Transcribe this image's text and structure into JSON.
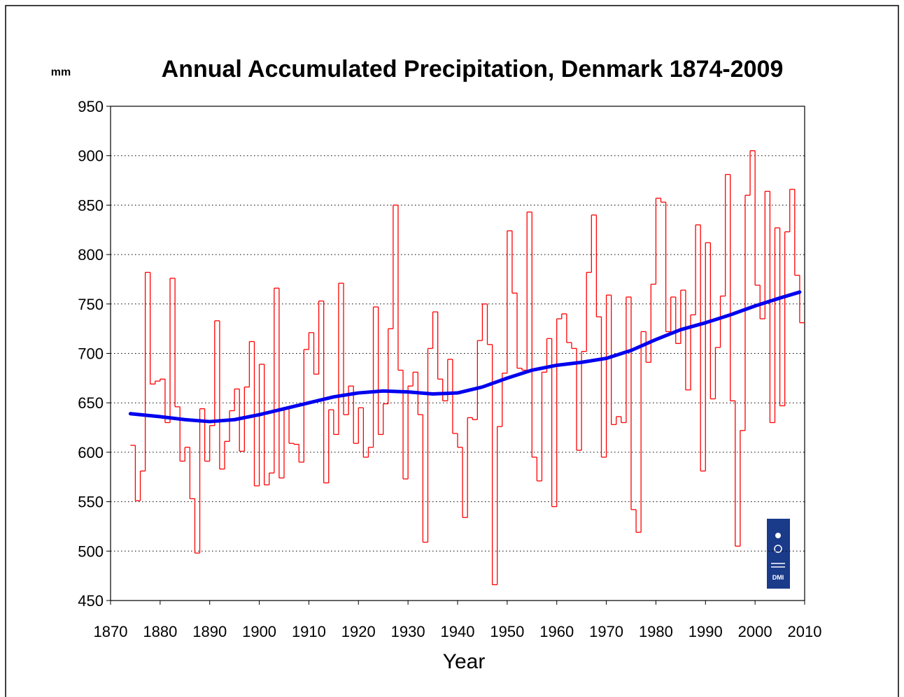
{
  "chart_data": {
    "type": "line",
    "title": "Annual Accumulated Precipitation, Denmark 1874-2009",
    "ylabel": "mm",
    "xlabel": "Year",
    "logo": "DMI",
    "xlim": [
      1870,
      2010
    ],
    "xticks": [
      1870,
      1880,
      1890,
      1900,
      1910,
      1920,
      1930,
      1940,
      1950,
      1960,
      1970,
      1980,
      1990,
      2000,
      2010
    ],
    "ylim": [
      450,
      950
    ],
    "yticks": [
      450,
      500,
      550,
      600,
      650,
      700,
      750,
      800,
      850,
      900,
      950
    ],
    "grid": true,
    "series": [
      {
        "color": "#ff0000",
        "step": true,
        "x": [
          1874,
          1875,
          1876,
          1877,
          1878,
          1879,
          1880,
          1881,
          1882,
          1883,
          1884,
          1885,
          1886,
          1887,
          1888,
          1889,
          1890,
          1891,
          1892,
          1893,
          1894,
          1895,
          1896,
          1897,
          1898,
          1899,
          1900,
          1901,
          1902,
          1903,
          1904,
          1905,
          1906,
          1907,
          1908,
          1909,
          1910,
          1911,
          1912,
          1913,
          1914,
          1915,
          1916,
          1917,
          1918,
          1919,
          1920,
          1921,
          1922,
          1923,
          1924,
          1925,
          1926,
          1927,
          1928,
          1929,
          1930,
          1931,
          1932,
          1933,
          1934,
          1935,
          1936,
          1937,
          1938,
          1939,
          1940,
          1941,
          1942,
          1943,
          1944,
          1945,
          1946,
          1947,
          1948,
          1949,
          1950,
          1951,
          1952,
          1953,
          1954,
          1955,
          1956,
          1957,
          1958,
          1959,
          1960,
          1961,
          1962,
          1963,
          1964,
          1965,
          1966,
          1967,
          1968,
          1969,
          1970,
          1971,
          1972,
          1973,
          1974,
          1975,
          1976,
          1977,
          1978,
          1979,
          1980,
          1981,
          1982,
          1983,
          1984,
          1985,
          1986,
          1987,
          1988,
          1989,
          1990,
          1991,
          1992,
          1993,
          1994,
          1995,
          1996,
          1997,
          1998,
          1999,
          2000,
          2001,
          2002,
          2003,
          2004,
          2005,
          2006,
          2007,
          2008,
          2009
        ],
        "values": [
          607,
          551,
          581,
          782,
          669,
          672,
          674,
          630,
          776,
          646,
          591,
          605,
          553,
          498,
          644,
          591,
          627,
          733,
          583,
          611,
          642,
          664,
          601,
          666,
          712,
          566,
          689,
          567,
          579,
          766,
          574,
          645,
          609,
          608,
          590,
          704,
          721,
          679,
          753,
          569,
          643,
          618,
          771,
          638,
          667,
          609,
          645,
          595,
          605,
          747,
          618,
          649,
          725,
          850,
          683,
          573,
          667,
          681,
          638,
          509,
          705,
          742,
          674,
          652,
          694,
          619,
          605,
          534,
          635,
          633,
          713,
          750,
          709,
          466,
          626,
          680,
          824,
          761,
          685,
          683,
          843,
          595,
          571,
          681,
          715,
          545,
          735,
          740,
          711,
          705,
          602,
          702,
          782,
          840,
          737,
          595,
          759,
          628,
          636,
          630,
          757,
          542,
          519,
          722,
          691,
          770,
          857,
          853,
          722,
          757,
          710,
          764,
          663,
          739,
          830,
          581,
          812,
          654,
          706,
          758,
          881,
          652,
          505,
          622,
          860,
          905,
          769,
          735,
          864,
          630,
          827,
          647,
          823,
          866,
          779,
          731
        ]
      },
      {
        "color": "#0000ee",
        "x": [
          1874,
          1880,
          1885,
          1890,
          1895,
          1900,
          1905,
          1910,
          1915,
          1920,
          1925,
          1930,
          1935,
          1940,
          1945,
          1950,
          1955,
          1960,
          1965,
          1970,
          1975,
          1980,
          1985,
          1990,
          1995,
          2000,
          2005,
          2009
        ],
        "values": [
          639,
          636,
          633,
          631,
          633,
          638,
          644,
          650,
          656,
          660,
          662,
          661,
          659,
          660,
          666,
          675,
          683,
          688,
          691,
          695,
          703,
          714,
          724,
          731,
          739,
          748,
          756,
          762
        ]
      }
    ]
  }
}
